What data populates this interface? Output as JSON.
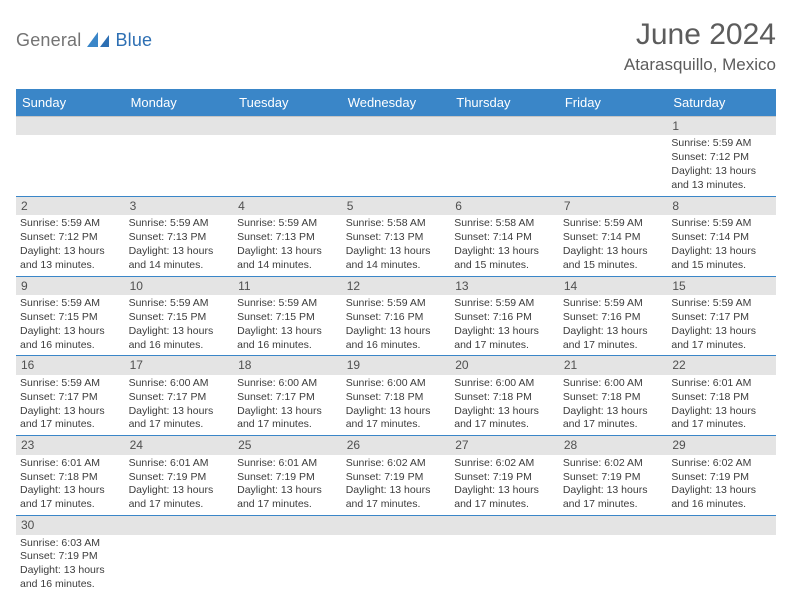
{
  "header": {
    "logo_text1": "General",
    "logo_text2": "Blue",
    "month_title": "June 2024",
    "location": "Atarasquillo, Mexico"
  },
  "colors": {
    "header_blue": "#3a86c8",
    "gray_bar": "#e4e4e4",
    "logo_gray": "#737373",
    "logo_blue": "#2d6fb3",
    "text_gray": "#5c5c5c",
    "border_gray": "#c5c5c5"
  },
  "day_labels": [
    "Sunday",
    "Monday",
    "Tuesday",
    "Wednesday",
    "Thursday",
    "Friday",
    "Saturday"
  ],
  "weeks": [
    [
      null,
      null,
      null,
      null,
      null,
      null,
      {
        "n": "1",
        "sr": "5:59 AM",
        "ss": "7:12 PM",
        "dl": "13 hours and 13 minutes."
      }
    ],
    [
      {
        "n": "2",
        "sr": "5:59 AM",
        "ss": "7:12 PM",
        "dl": "13 hours and 13 minutes."
      },
      {
        "n": "3",
        "sr": "5:59 AM",
        "ss": "7:13 PM",
        "dl": "13 hours and 14 minutes."
      },
      {
        "n": "4",
        "sr": "5:59 AM",
        "ss": "7:13 PM",
        "dl": "13 hours and 14 minutes."
      },
      {
        "n": "5",
        "sr": "5:58 AM",
        "ss": "7:13 PM",
        "dl": "13 hours and 14 minutes."
      },
      {
        "n": "6",
        "sr": "5:58 AM",
        "ss": "7:14 PM",
        "dl": "13 hours and 15 minutes."
      },
      {
        "n": "7",
        "sr": "5:59 AM",
        "ss": "7:14 PM",
        "dl": "13 hours and 15 minutes."
      },
      {
        "n": "8",
        "sr": "5:59 AM",
        "ss": "7:14 PM",
        "dl": "13 hours and 15 minutes."
      }
    ],
    [
      {
        "n": "9",
        "sr": "5:59 AM",
        "ss": "7:15 PM",
        "dl": "13 hours and 16 minutes."
      },
      {
        "n": "10",
        "sr": "5:59 AM",
        "ss": "7:15 PM",
        "dl": "13 hours and 16 minutes."
      },
      {
        "n": "11",
        "sr": "5:59 AM",
        "ss": "7:15 PM",
        "dl": "13 hours and 16 minutes."
      },
      {
        "n": "12",
        "sr": "5:59 AM",
        "ss": "7:16 PM",
        "dl": "13 hours and 16 minutes."
      },
      {
        "n": "13",
        "sr": "5:59 AM",
        "ss": "7:16 PM",
        "dl": "13 hours and 17 minutes."
      },
      {
        "n": "14",
        "sr": "5:59 AM",
        "ss": "7:16 PM",
        "dl": "13 hours and 17 minutes."
      },
      {
        "n": "15",
        "sr": "5:59 AM",
        "ss": "7:17 PM",
        "dl": "13 hours and 17 minutes."
      }
    ],
    [
      {
        "n": "16",
        "sr": "5:59 AM",
        "ss": "7:17 PM",
        "dl": "13 hours and 17 minutes."
      },
      {
        "n": "17",
        "sr": "6:00 AM",
        "ss": "7:17 PM",
        "dl": "13 hours and 17 minutes."
      },
      {
        "n": "18",
        "sr": "6:00 AM",
        "ss": "7:17 PM",
        "dl": "13 hours and 17 minutes."
      },
      {
        "n": "19",
        "sr": "6:00 AM",
        "ss": "7:18 PM",
        "dl": "13 hours and 17 minutes."
      },
      {
        "n": "20",
        "sr": "6:00 AM",
        "ss": "7:18 PM",
        "dl": "13 hours and 17 minutes."
      },
      {
        "n": "21",
        "sr": "6:00 AM",
        "ss": "7:18 PM",
        "dl": "13 hours and 17 minutes."
      },
      {
        "n": "22",
        "sr": "6:01 AM",
        "ss": "7:18 PM",
        "dl": "13 hours and 17 minutes."
      }
    ],
    [
      {
        "n": "23",
        "sr": "6:01 AM",
        "ss": "7:18 PM",
        "dl": "13 hours and 17 minutes."
      },
      {
        "n": "24",
        "sr": "6:01 AM",
        "ss": "7:19 PM",
        "dl": "13 hours and 17 minutes."
      },
      {
        "n": "25",
        "sr": "6:01 AM",
        "ss": "7:19 PM",
        "dl": "13 hours and 17 minutes."
      },
      {
        "n": "26",
        "sr": "6:02 AM",
        "ss": "7:19 PM",
        "dl": "13 hours and 17 minutes."
      },
      {
        "n": "27",
        "sr": "6:02 AM",
        "ss": "7:19 PM",
        "dl": "13 hours and 17 minutes."
      },
      {
        "n": "28",
        "sr": "6:02 AM",
        "ss": "7:19 PM",
        "dl": "13 hours and 17 minutes."
      },
      {
        "n": "29",
        "sr": "6:02 AM",
        "ss": "7:19 PM",
        "dl": "13 hours and 16 minutes."
      }
    ],
    [
      {
        "n": "30",
        "sr": "6:03 AM",
        "ss": "7:19 PM",
        "dl": "13 hours and 16 minutes."
      },
      null,
      null,
      null,
      null,
      null,
      null
    ]
  ],
  "labels": {
    "sunrise": "Sunrise: ",
    "sunset": "Sunset: ",
    "daylight": "Daylight: "
  }
}
